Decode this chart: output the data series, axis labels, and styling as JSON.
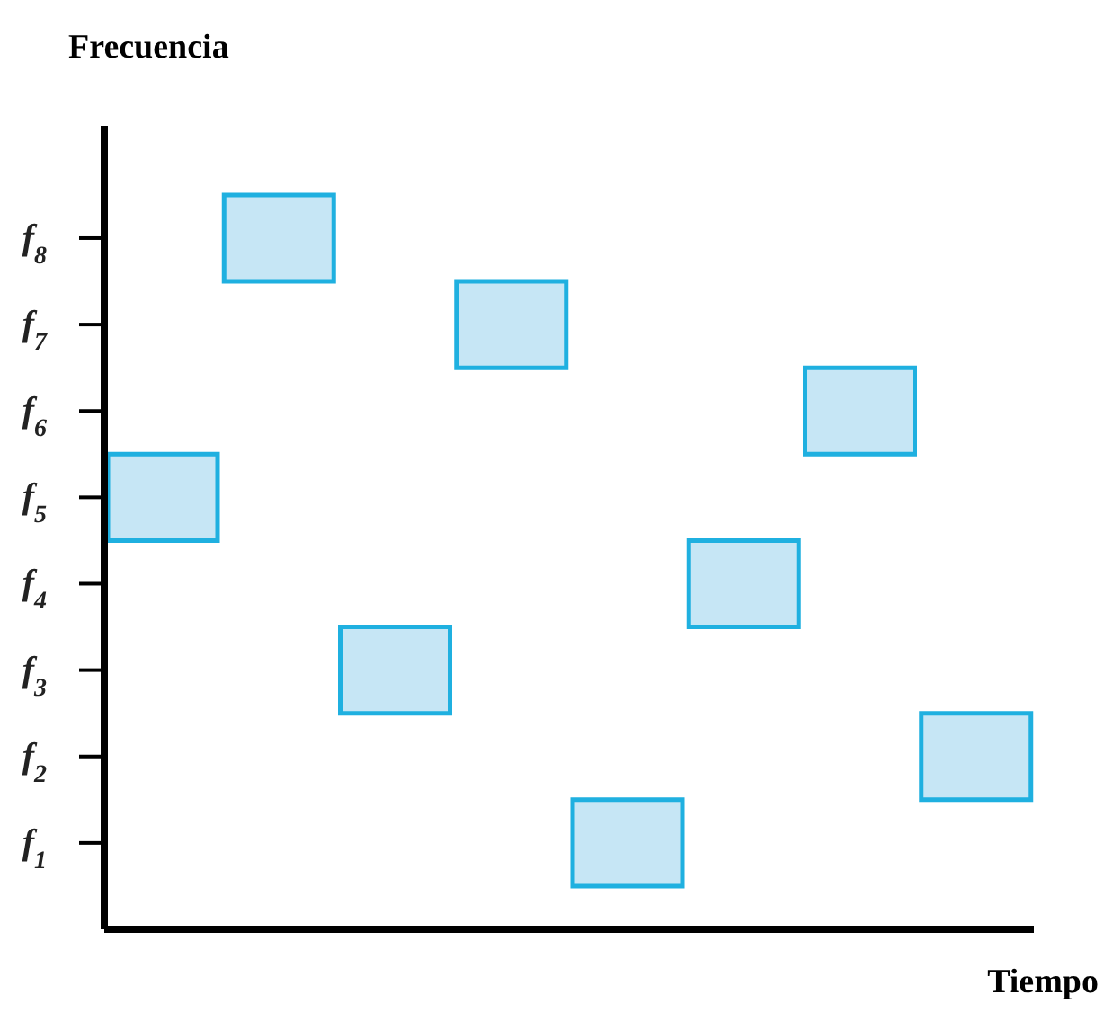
{
  "chart_data": {
    "type": "bar",
    "xlabel": "Tiempo",
    "ylabel": "Frecuencia",
    "categories": [
      null,
      null,
      null,
      null,
      null,
      null,
      null,
      null
    ],
    "base": [
      4.5,
      7.5,
      2.5,
      6.5,
      0.5,
      3.5,
      5.5,
      1.5
    ],
    "values": [
      1,
      1,
      1,
      1,
      1,
      1,
      1,
      1
    ],
    "color": "#c6e6f5",
    "ylim": [
      0,
      9.3
    ],
    "yticks": [
      {
        "value": 1,
        "label": "f$_{1}$"
      },
      {
        "value": 2,
        "label": "f$_{2}$"
      },
      {
        "value": 3,
        "label": "f$_{3}$"
      },
      {
        "value": 4,
        "label": "f$_{4}$"
      },
      {
        "value": 5,
        "label": "f$_{5}$"
      },
      {
        "value": 6,
        "label": "f$_{6}$"
      },
      {
        "value": 7,
        "label": "f$_{7}$"
      },
      {
        "value": 8,
        "label": "f$_{8}$"
      }
    ],
    "tick_labels": "y"
  }
}
